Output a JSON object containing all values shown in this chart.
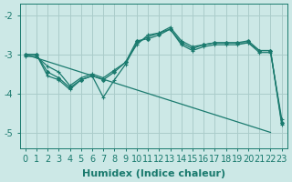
{
  "xlabel": "Humidex (Indice chaleur)",
  "background_color": "#cce8e6",
  "grid_color": "#aaccca",
  "line_color": "#1a7a6e",
  "xlim": [
    -0.5,
    23.5
  ],
  "ylim": [
    -5.4,
    -1.7
  ],
  "yticks": [
    -5,
    -4,
    -3,
    -2
  ],
  "xticks": [
    0,
    1,
    2,
    3,
    4,
    5,
    6,
    7,
    8,
    9,
    10,
    11,
    12,
    13,
    14,
    15,
    16,
    17,
    18,
    19,
    20,
    21,
    22,
    23
  ],
  "fontsize_label": 8,
  "fontsize_tick": 7,
  "line1_x": [
    0,
    1,
    2,
    3,
    4,
    5,
    6,
    7,
    8,
    9,
    10,
    11,
    12,
    13,
    14,
    15,
    16,
    17,
    18,
    19,
    20,
    21,
    22,
    23
  ],
  "line1_y": [
    -3.0,
    -3.0,
    -3.55,
    -3.65,
    -3.9,
    -3.65,
    -3.55,
    -4.1,
    -3.65,
    -3.25,
    -2.7,
    -2.55,
    -2.45,
    -2.35,
    -2.75,
    -2.9,
    -2.8,
    -2.75,
    -2.75,
    -2.75,
    -2.7,
    -2.95,
    -2.95,
    -4.65
  ],
  "line1_marker": "+",
  "line2_x": [
    0,
    1,
    2,
    3,
    4,
    5,
    6,
    7,
    8,
    9,
    10,
    11,
    12,
    13,
    14,
    15,
    16,
    17,
    18,
    19,
    20,
    21,
    22,
    23
  ],
  "line2_y": [
    -3.0,
    -3.0,
    -3.45,
    -3.6,
    -3.85,
    -3.65,
    -3.55,
    -3.65,
    -3.45,
    -3.2,
    -2.65,
    -2.6,
    -2.5,
    -2.35,
    -2.7,
    -2.85,
    -2.75,
    -2.7,
    -2.7,
    -2.7,
    -2.65,
    -2.9,
    -2.9,
    -4.75
  ],
  "line2_marker": "D",
  "line3_x": [
    0,
    1,
    2,
    3,
    4,
    5,
    6,
    7,
    8,
    9,
    10,
    11,
    12,
    13,
    14,
    15,
    16,
    17,
    18,
    19,
    20,
    21,
    22,
    23
  ],
  "line3_y": [
    -3.05,
    -3.05,
    -3.3,
    -3.45,
    -3.8,
    -3.6,
    -3.5,
    -3.6,
    -3.4,
    -3.2,
    -2.75,
    -2.5,
    -2.45,
    -2.3,
    -2.65,
    -2.8,
    -2.75,
    -2.7,
    -2.7,
    -2.7,
    -2.7,
    -2.9,
    -2.9,
    -4.8
  ],
  "line3_marker": "+",
  "line4_x": [
    0,
    22
  ],
  "line4_y": [
    -3.0,
    -5.0
  ],
  "line4_marker": "none"
}
